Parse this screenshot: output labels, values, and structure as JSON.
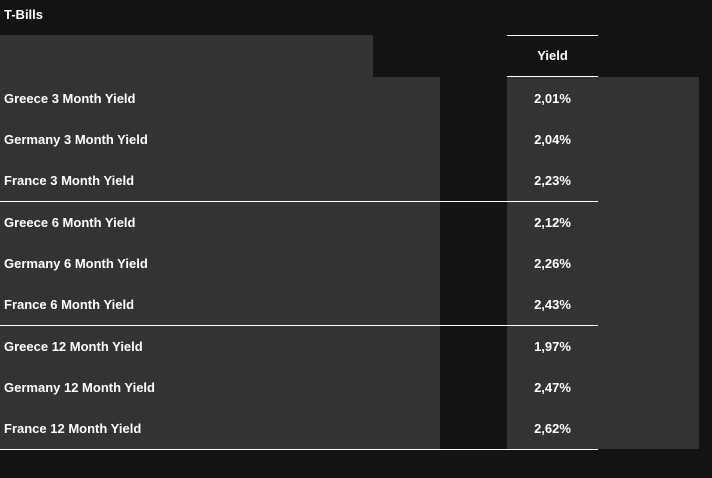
{
  "title": "T-Bills",
  "columns": {
    "yield": "Yield"
  },
  "rows": [
    {
      "name": "Greece 3 Month Yield",
      "yield": "2,01%"
    },
    {
      "name": "Germany 3 Month Yield",
      "yield": "2,04%"
    },
    {
      "name": "France 3 Month Yield",
      "yield": "2,23%"
    },
    {
      "name": "Greece 6 Month Yield",
      "yield": "2,12%"
    },
    {
      "name": "Germany 6 Month Yield",
      "yield": "2,26%"
    },
    {
      "name": "France 6 Month Yield",
      "yield": "2,43%"
    },
    {
      "name": "Greece 12 Month Yield",
      "yield": "1,97%"
    },
    {
      "name": "Germany 12 Month Yield",
      "yield": "2,47%"
    },
    {
      "name": "France 12 Month Yield",
      "yield": "2,62%"
    }
  ],
  "colors": {
    "page_background": "#131313",
    "panel_background": "#333333",
    "text": "#ffffff",
    "divider": "#ffffff"
  }
}
